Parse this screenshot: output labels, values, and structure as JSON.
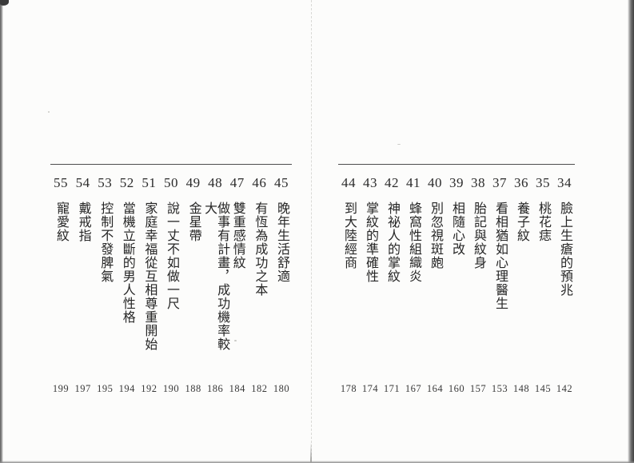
{
  "colors": {
    "ink": "#2e2e2e",
    "paper": "#fcfcfb",
    "rule": "#4e4e4e"
  },
  "pages": {
    "left": {
      "entries": [
        {
          "num": "45",
          "title": "晚年生活舒適",
          "page": "180"
        },
        {
          "num": "46",
          "title": "有恆為成功之本",
          "page": "182"
        },
        {
          "num": "47",
          "title": "雙重感情紋",
          "page": "184"
        },
        {
          "num": "48",
          "title": "做事有計畫，成功機率較大",
          "page": "186"
        },
        {
          "num": "49",
          "title": "金星帶",
          "page": "188"
        },
        {
          "num": "50",
          "title": "說一丈不如做一尺",
          "page": "190"
        },
        {
          "num": "51",
          "title": "家庭幸福從互相尊重開始",
          "page": "192"
        },
        {
          "num": "52",
          "title": "當機立斷的男人性格",
          "page": "194"
        },
        {
          "num": "53",
          "title": "控制不發脾氣",
          "page": "195"
        },
        {
          "num": "54",
          "title": "戴戒指",
          "page": "197"
        },
        {
          "num": "55",
          "title": "寵愛紋",
          "page": "199"
        }
      ]
    },
    "right": {
      "entries": [
        {
          "num": "34",
          "title": "臉上生瘡的預兆",
          "page": "142"
        },
        {
          "num": "35",
          "title": "桃花痣",
          "page": "145"
        },
        {
          "num": "36",
          "title": "養子紋",
          "page": "148"
        },
        {
          "num": "37",
          "title": "看相猶如心理醫生",
          "page": "153"
        },
        {
          "num": "38",
          "title": "胎記與紋身",
          "page": "157"
        },
        {
          "num": "39",
          "title": "相隨心改",
          "page": "160"
        },
        {
          "num": "40",
          "title": "別忽視斑皰",
          "page": "164"
        },
        {
          "num": "41",
          "title": "蜂窩性組織炎",
          "page": "167"
        },
        {
          "num": "42",
          "title": "神祕人的掌紋",
          "page": "171"
        },
        {
          "num": "43",
          "title": "掌紋的準確性",
          "page": "174"
        },
        {
          "num": "44",
          "title": "到大陸經商",
          "page": "178"
        }
      ]
    }
  }
}
